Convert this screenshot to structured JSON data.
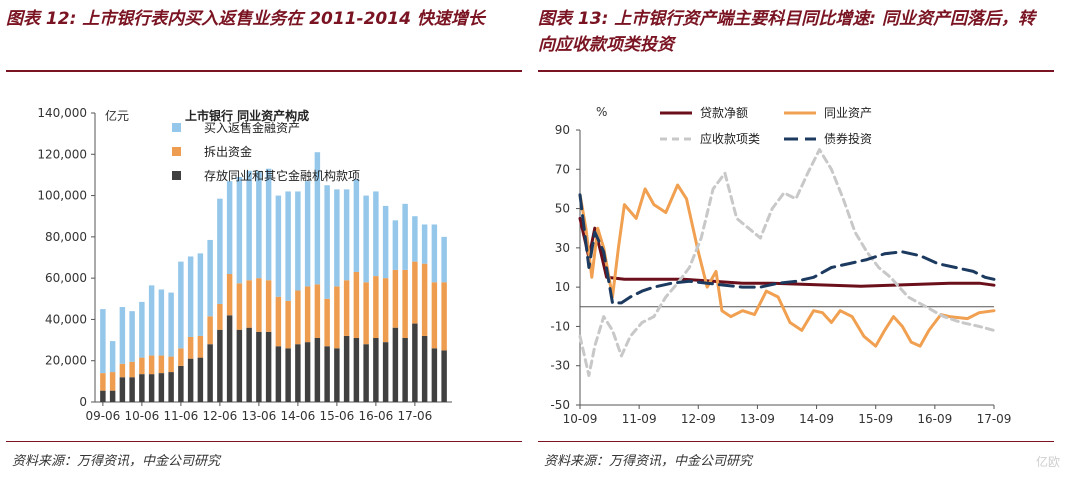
{
  "left": {
    "title": "图表 12: 上市银行表内买入返售业务在 2011-2014 快速增长",
    "source": "资料来源：万得资讯，中金公司研究"
  },
  "right": {
    "title": "图表 13: 上市银行资产端主要科目同比增速: 同业资产回落后，转向应收款项类投资",
    "source": "资料来源：万得资讯，中金公司研究"
  },
  "watermark": "亿欧",
  "chart_data": [
    {
      "type": "bar",
      "stacked": true,
      "title": "上市银行 同业资产构成",
      "ylabel": "亿元",
      "ylim": [
        0,
        140000
      ],
      "yticks": [
        "0",
        "20,000",
        "40,000",
        "60,000",
        "80,000",
        "100,000",
        "120,000",
        "140,000"
      ],
      "xtick_labels": [
        "09-06",
        "10-06",
        "11-06",
        "12-06",
        "13-06",
        "14-06",
        "15-06",
        "16-06",
        "17-06"
      ],
      "legend_position": "top-left",
      "series": [
        {
          "name": "存放同业和其它金融机构款项",
          "color": "#404040",
          "values": [
            5500,
            5500,
            12000,
            12000,
            13500,
            13500,
            14000,
            14500,
            17500,
            21000,
            21500,
            28000,
            35000,
            42000,
            35000,
            36000,
            34000,
            34000,
            27000,
            26000,
            28000,
            29000,
            31000,
            27000,
            26000,
            32000,
            31000,
            28000,
            31000,
            29000,
            36000,
            31000,
            38000,
            32000,
            26000,
            25000
          ]
        },
        {
          "name": "拆出资金",
          "color": "#ee9d50",
          "values": [
            8500,
            9000,
            6500,
            7500,
            8000,
            9000,
            8500,
            7500,
            8500,
            10500,
            10500,
            13500,
            12500,
            20000,
            22500,
            23000,
            26000,
            25000,
            24000,
            23000,
            26000,
            27000,
            26000,
            23000,
            30000,
            27000,
            32000,
            30000,
            30000,
            31000,
            28000,
            33000,
            30000,
            35000,
            32000,
            33000
          ]
        },
        {
          "name": "买入返售金融资产",
          "color": "#94c7ea",
          "values": [
            31000,
            15000,
            27500,
            24500,
            27000,
            34000,
            32000,
            31000,
            42000,
            39000,
            40000,
            37000,
            51000,
            45000,
            51500,
            53000,
            52000,
            54000,
            49000,
            53000,
            48000,
            51000,
            64000,
            55000,
            47000,
            44000,
            45000,
            42000,
            41000,
            35000,
            24000,
            32000,
            22000,
            19000,
            28000,
            22000
          ]
        }
      ]
    },
    {
      "type": "line",
      "ylabel": "%",
      "ylim": [
        -50,
        90
      ],
      "yticks": [
        "-50",
        "-30",
        "-10",
        "10",
        "30",
        "50",
        "70",
        "90"
      ],
      "xtick_labels": [
        "10-09",
        "11-09",
        "12-09",
        "13-09",
        "14-09",
        "15-09",
        "16-09",
        "17-09"
      ],
      "x_range": [
        2010.75,
        2017.75
      ],
      "legend_position": "top",
      "series": [
        {
          "name": "贷款净额",
          "color": "#6b0f1a",
          "dash": "solid",
          "points": [
            [
              2010.75,
              45
            ],
            [
              2010.9,
              25
            ],
            [
              2011.0,
              40
            ],
            [
              2011.1,
              28
            ],
            [
              2011.2,
              15
            ],
            [
              2011.5,
              14
            ],
            [
              2012.0,
              14
            ],
            [
              2012.5,
              14
            ],
            [
              2013.0,
              13
            ],
            [
              2013.5,
              12
            ],
            [
              2014.0,
              12
            ],
            [
              2014.5,
              11.5
            ],
            [
              2015.0,
              11
            ],
            [
              2015.5,
              10.5
            ],
            [
              2016.0,
              11
            ],
            [
              2016.5,
              11.5
            ],
            [
              2017.0,
              12
            ],
            [
              2017.5,
              12
            ],
            [
              2017.75,
              11
            ]
          ]
        },
        {
          "name": "同业资产",
          "color": "#f0a050",
          "dash": "solid",
          "points": [
            [
              2010.75,
              57
            ],
            [
              2010.85,
              40
            ],
            [
              2010.95,
              15
            ],
            [
              2011.05,
              40
            ],
            [
              2011.15,
              30
            ],
            [
              2011.3,
              5
            ],
            [
              2011.4,
              30
            ],
            [
              2011.5,
              52
            ],
            [
              2011.7,
              45
            ],
            [
              2011.85,
              60
            ],
            [
              2012.0,
              52
            ],
            [
              2012.2,
              48
            ],
            [
              2012.4,
              62
            ],
            [
              2012.55,
              55
            ],
            [
              2012.75,
              28
            ],
            [
              2012.9,
              10
            ],
            [
              2013.05,
              18
            ],
            [
              2013.15,
              -2
            ],
            [
              2013.3,
              -5
            ],
            [
              2013.5,
              -2
            ],
            [
              2013.7,
              -4
            ],
            [
              2013.9,
              8
            ],
            [
              2014.1,
              5
            ],
            [
              2014.3,
              -8
            ],
            [
              2014.5,
              -12
            ],
            [
              2014.7,
              -2
            ],
            [
              2014.85,
              -3
            ],
            [
              2015.0,
              -8
            ],
            [
              2015.15,
              -2
            ],
            [
              2015.35,
              -5
            ],
            [
              2015.55,
              -15
            ],
            [
              2015.75,
              -20
            ],
            [
              2015.9,
              -12
            ],
            [
              2016.05,
              -5
            ],
            [
              2016.2,
              -10
            ],
            [
              2016.35,
              -18
            ],
            [
              2016.5,
              -20
            ],
            [
              2016.65,
              -12
            ],
            [
              2016.85,
              -4
            ],
            [
              2017.0,
              -5
            ],
            [
              2017.3,
              -6
            ],
            [
              2017.5,
              -3
            ],
            [
              2017.75,
              -2
            ]
          ]
        },
        {
          "name": "应收款项类",
          "color": "#c8c8c8",
          "dash": "dashed",
          "points": [
            [
              2010.75,
              -15
            ],
            [
              2010.9,
              -35
            ],
            [
              2011.0,
              -20
            ],
            [
              2011.15,
              -5
            ],
            [
              2011.3,
              -12
            ],
            [
              2011.45,
              -25
            ],
            [
              2011.6,
              -15
            ],
            [
              2011.8,
              -8
            ],
            [
              2012.0,
              -5
            ],
            [
              2012.2,
              5
            ],
            [
              2012.4,
              12
            ],
            [
              2012.6,
              20
            ],
            [
              2012.8,
              35
            ],
            [
              2013.0,
              60
            ],
            [
              2013.2,
              68
            ],
            [
              2013.4,
              45
            ],
            [
              2013.6,
              40
            ],
            [
              2013.8,
              35
            ],
            [
              2014.0,
              50
            ],
            [
              2014.2,
              58
            ],
            [
              2014.4,
              55
            ],
            [
              2014.6,
              68
            ],
            [
              2014.8,
              80
            ],
            [
              2015.0,
              70
            ],
            [
              2015.2,
              55
            ],
            [
              2015.4,
              38
            ],
            [
              2015.6,
              28
            ],
            [
              2015.8,
              20
            ],
            [
              2016.0,
              15
            ],
            [
              2016.3,
              5
            ],
            [
              2016.6,
              0
            ],
            [
              2016.9,
              -5
            ],
            [
              2017.2,
              -8
            ],
            [
              2017.5,
              -10
            ],
            [
              2017.75,
              -12
            ]
          ]
        },
        {
          "name": "债券投资",
          "color": "#1c3a60",
          "dash": "longdash",
          "points": [
            [
              2010.75,
              57
            ],
            [
              2010.9,
              20
            ],
            [
              2011.0,
              38
            ],
            [
              2011.15,
              28
            ],
            [
              2011.3,
              2
            ],
            [
              2011.45,
              2
            ],
            [
              2011.6,
              5
            ],
            [
              2011.8,
              8
            ],
            [
              2012.0,
              10
            ],
            [
              2012.3,
              12
            ],
            [
              2012.6,
              13
            ],
            [
              2012.9,
              12
            ],
            [
              2013.2,
              11
            ],
            [
              2013.5,
              10
            ],
            [
              2013.8,
              10
            ],
            [
              2014.1,
              12
            ],
            [
              2014.4,
              13
            ],
            [
              2014.7,
              15
            ],
            [
              2015.0,
              20
            ],
            [
              2015.3,
              22
            ],
            [
              2015.6,
              24
            ],
            [
              2015.9,
              27
            ],
            [
              2016.2,
              28
            ],
            [
              2016.5,
              26
            ],
            [
              2016.8,
              22
            ],
            [
              2017.1,
              20
            ],
            [
              2017.4,
              18
            ],
            [
              2017.6,
              15
            ],
            [
              2017.75,
              14
            ]
          ]
        }
      ]
    }
  ]
}
